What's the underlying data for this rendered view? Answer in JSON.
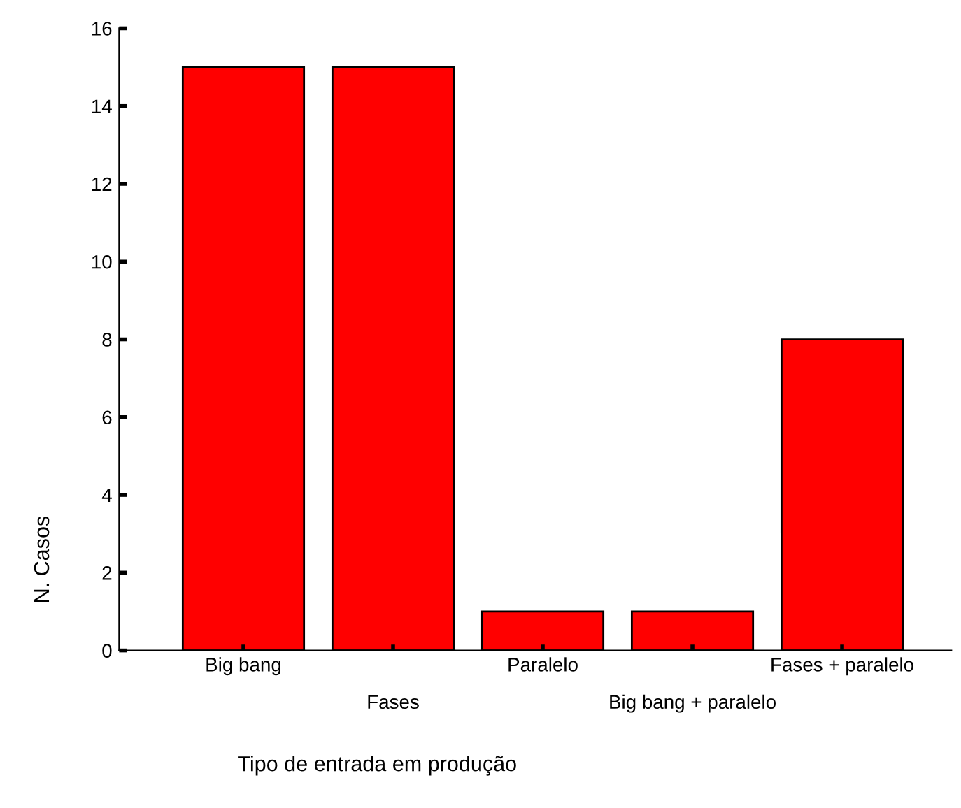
{
  "chart_data": {
    "type": "bar",
    "xlabel": "Tipo de entrada em produção",
    "ylabel": "N. Casos",
    "categories": [
      "Big bang",
      "Fases",
      "Paralelo",
      "Big bang + paralelo",
      "Fases + paralelo"
    ],
    "values": [
      15,
      15,
      1,
      1,
      8
    ],
    "color": "#ff0000",
    "ylim": [
      0,
      16
    ],
    "yticks": [
      0,
      2,
      4,
      6,
      8,
      10,
      12,
      14,
      16
    ],
    "grid": false,
    "legend": false
  }
}
